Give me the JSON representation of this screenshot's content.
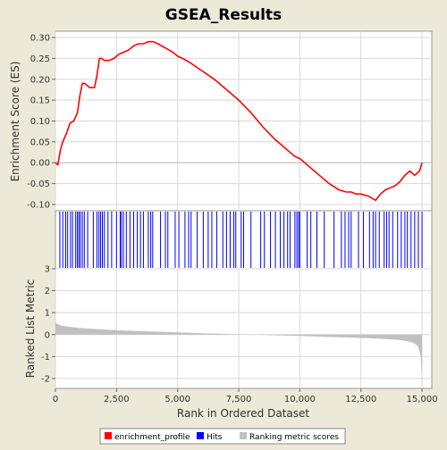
{
  "chart_data": {
    "type": "line",
    "title": "GSEA_Results",
    "xlabel": "Rank in Ordered Dataset",
    "x_ticks": [
      0,
      2500,
      5000,
      7500,
      10000,
      12500,
      15000
    ],
    "x_tick_labels": [
      "0",
      "2,500",
      "5,000",
      "7,500",
      "10,000",
      "12,500",
      "15,000"
    ],
    "xlim": [
      0,
      15400
    ],
    "es_panel": {
      "ylabel": "Enrichment Score (ES)",
      "ylim": [
        -0.115,
        0.315
      ],
      "y_ticks": [
        -0.1,
        -0.05,
        0.0,
        0.05,
        0.1,
        0.15,
        0.2,
        0.25,
        0.3
      ],
      "y_tick_labels": [
        "-0.10",
        "-0.05",
        "0.00",
        "0.05",
        "0.10",
        "0.15",
        "0.20",
        "0.25",
        "0.30"
      ],
      "series_name": "enrichment_profile",
      "color": "#ff0000",
      "x": [
        0,
        100,
        200,
        300,
        450,
        600,
        750,
        900,
        1000,
        1100,
        1200,
        1400,
        1600,
        1700,
        1800,
        1900,
        2000,
        2200,
        2400,
        2600,
        2800,
        3000,
        3200,
        3400,
        3600,
        3800,
        4000,
        4200,
        4500,
        4800,
        5000,
        5200,
        5500,
        6000,
        6500,
        7000,
        7500,
        8000,
        8500,
        9000,
        9500,
        9800,
        10000,
        10200,
        10500,
        10800,
        11200,
        11600,
        11900,
        12100,
        12300,
        12500,
        12800,
        13100,
        13300,
        13500,
        13700,
        13900,
        14100,
        14300,
        14500,
        14700,
        14900,
        15000
      ],
      "y": [
        0.0,
        -0.005,
        0.03,
        0.05,
        0.07,
        0.095,
        0.1,
        0.12,
        0.16,
        0.19,
        0.19,
        0.18,
        0.18,
        0.21,
        0.25,
        0.25,
        0.245,
        0.245,
        0.25,
        0.26,
        0.265,
        0.27,
        0.28,
        0.285,
        0.285,
        0.29,
        0.29,
        0.285,
        0.275,
        0.265,
        0.255,
        0.25,
        0.24,
        0.22,
        0.2,
        0.175,
        0.15,
        0.12,
        0.085,
        0.055,
        0.03,
        0.015,
        0.01,
        0.0,
        -0.015,
        -0.03,
        -0.05,
        -0.065,
        -0.07,
        -0.07,
        -0.075,
        -0.075,
        -0.08,
        -0.09,
        -0.075,
        -0.065,
        -0.06,
        -0.055,
        -0.045,
        -0.03,
        -0.02,
        -0.03,
        -0.02,
        0.0
      ]
    },
    "hits": {
      "series_name": "Hits",
      "color": "#0000ff",
      "positions": [
        180,
        300,
        420,
        500,
        620,
        700,
        830,
        900,
        960,
        1020,
        1100,
        1180,
        1320,
        1550,
        1700,
        1780,
        1850,
        1920,
        2000,
        2150,
        2300,
        2500,
        2650,
        2700,
        2780,
        2900,
        3050,
        3200,
        3350,
        3480,
        3600,
        3800,
        3900,
        3980,
        4300,
        4500,
        4600,
        4900,
        5050,
        5300,
        5450,
        5550,
        5800,
        6050,
        6250,
        6400,
        6600,
        6850,
        7000,
        7150,
        7300,
        7380,
        7600,
        7700,
        8000,
        8400,
        8550,
        8800,
        9000,
        9200,
        9350,
        9500,
        9600,
        9800,
        9880,
        9950,
        10000,
        10300,
        10450,
        10700,
        11000,
        11400,
        11700,
        11850,
        12000,
        12100,
        12400,
        12600,
        12850,
        13000,
        13100,
        13250,
        13450,
        13550,
        13650,
        13800,
        14000,
        14150,
        14300,
        14400,
        14550,
        14700,
        14850,
        15000
      ]
    },
    "rank_panel": {
      "ylabel": "Ranked List Metric",
      "ylim": [
        -2.45,
        3.0
      ],
      "y_ticks": [
        -2,
        -1,
        0,
        1,
        2,
        3
      ],
      "y_tick_labels": [
        "-2",
        "-1",
        "0",
        "1",
        "2",
        "3"
      ],
      "series_name": "Ranking metric scores",
      "color": "#c0c0c0",
      "x": [
        0,
        50,
        200,
        500,
        1000,
        2000,
        3000,
        4000,
        5000,
        6000,
        7000,
        8000,
        9000,
        10000,
        11000,
        12000,
        13000,
        13500,
        14000,
        14400,
        14700,
        14850,
        14950,
        15000
      ],
      "y": [
        0.6,
        0.5,
        0.42,
        0.36,
        0.3,
        0.23,
        0.18,
        0.14,
        0.1,
        0.06,
        0.03,
        0.0,
        -0.03,
        -0.06,
        -0.1,
        -0.13,
        -0.17,
        -0.2,
        -0.24,
        -0.3,
        -0.4,
        -0.55,
        -1.0,
        -2.25
      ]
    },
    "legend": {
      "position": "bottom",
      "entries": [
        {
          "label": "enrichment_profile",
          "color": "#ff0000"
        },
        {
          "label": "Hits",
          "color": "#0000ff"
        },
        {
          "label": "Ranking metric scores",
          "color": "#c0c0c0"
        }
      ]
    }
  }
}
